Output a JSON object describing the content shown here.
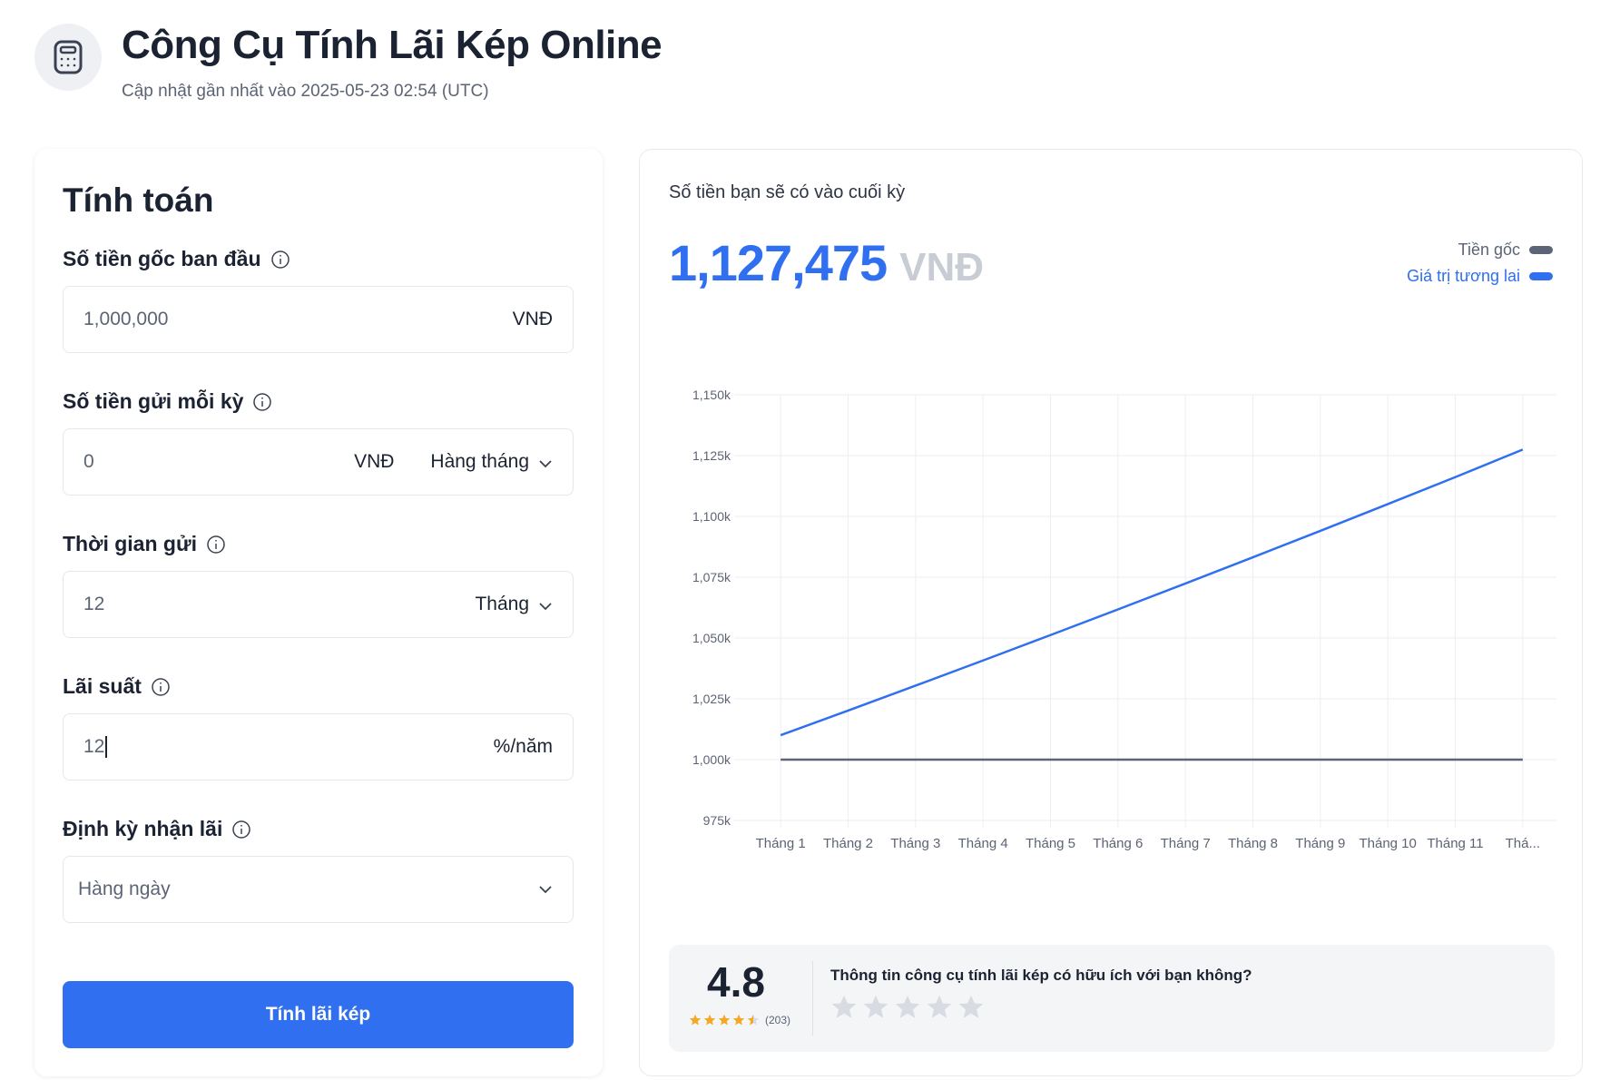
{
  "header": {
    "title": "Công Cụ Tính Lãi Kép Online",
    "updated": "Cập nhật gần nhất vào 2025-05-23 02:54 (UTC)",
    "logo_icon": "calculator-icon"
  },
  "calculator": {
    "title": "Tính toán",
    "principal": {
      "label": "Số tiền gốc ban đầu",
      "value": "1,000,000",
      "unit": "VNĐ"
    },
    "deposit": {
      "label": "Số tiền gửi mỗi kỳ",
      "value": "0",
      "unit": "VNĐ",
      "frequency": "Hàng tháng"
    },
    "duration": {
      "label": "Thời gian gửi",
      "value": "12",
      "unit": "Tháng"
    },
    "rate": {
      "label": "Lãi suất",
      "value": "12",
      "unit": "%/năm"
    },
    "compounding": {
      "label": "Định kỳ nhận lãi",
      "value": "Hàng ngày"
    },
    "button": "Tính lãi kép"
  },
  "result": {
    "caption": "Số tiền bạn sẽ có vào cuối kỳ",
    "amount": "1,127,475",
    "currency": "VNĐ"
  },
  "legend": {
    "principal": "Tiền gốc",
    "future": "Giá trị tương lai"
  },
  "colors": {
    "accent": "#2f6ff0",
    "principal_line": "#5b6577",
    "star": "#f5a623"
  },
  "chart_data": {
    "type": "line",
    "categories": [
      "Tháng 1",
      "Tháng 2",
      "Tháng 3",
      "Tháng 4",
      "Tháng 5",
      "Tháng 6",
      "Tháng 7",
      "Tháng 8",
      "Tháng 9",
      "Tháng 10",
      "Tháng 11",
      "Thá..."
    ],
    "series": [
      {
        "name": "Tiền gốc",
        "color": "#5b6577",
        "values": [
          1000000,
          1000000,
          1000000,
          1000000,
          1000000,
          1000000,
          1000000,
          1000000,
          1000000,
          1000000,
          1000000,
          1000000
        ]
      },
      {
        "name": "Giá trị tương lai",
        "color": "#2f6ff0",
        "values": [
          1010040,
          1020180,
          1030420,
          1040760,
          1051210,
          1061760,
          1072420,
          1083190,
          1094060,
          1105050,
          1116140,
          1127475
        ]
      }
    ],
    "yticks": [
      "1,150k",
      "1,125k",
      "1,100k",
      "1,075k",
      "1,050k",
      "1,025k",
      "1,000k",
      "975k"
    ],
    "ytick_values": [
      1150000,
      1125000,
      1100000,
      1075000,
      1050000,
      1025000,
      1000000,
      975000
    ],
    "ylim": [
      975000,
      1150000
    ],
    "grid": true,
    "legend_position": "top-right"
  },
  "rating": {
    "score": "4.8",
    "count": "(203)",
    "question": "Thông tin công cụ tính lãi kép có hữu ích với bạn không?"
  }
}
